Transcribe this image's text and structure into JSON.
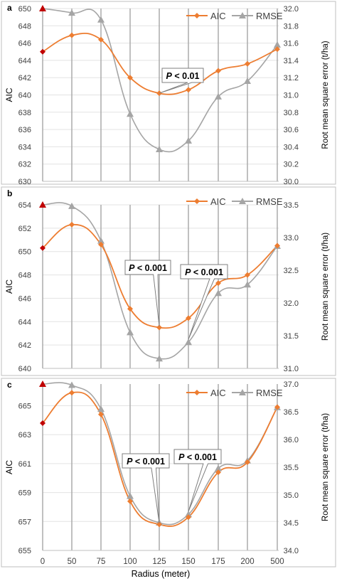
{
  "x_axis_title": "Radius (meter)",
  "chart_data": [
    {
      "type": "line",
      "panel_label": "a",
      "categories": [
        "0",
        "50",
        "75",
        "100",
        "125",
        "150",
        "175",
        "200",
        "500"
      ],
      "y_left": {
        "label": "AIC",
        "ylim": [
          630,
          650
        ],
        "ticks": [
          "630",
          "632",
          "634",
          "636",
          "638",
          "640",
          "642",
          "644",
          "646",
          "648",
          "650"
        ]
      },
      "y_right": {
        "label": "Root mean square error (t/ha)",
        "ylim": [
          30.0,
          32.0
        ],
        "ticks": [
          "30.0",
          "30.2",
          "30.4",
          "30.6",
          "30.8",
          "31.0",
          "31.2",
          "31.4",
          "31.6",
          "31.8",
          "32.0"
        ]
      },
      "series": [
        {
          "name": "AIC",
          "axis": "left",
          "color": "#ed7d31",
          "values": [
            645.0,
            646.9,
            646.4,
            642.0,
            640.2,
            640.6,
            642.8,
            643.6,
            645.3
          ]
        },
        {
          "name": "RMSE",
          "axis": "right",
          "color": "#a5a5a5",
          "values": [
            32.0,
            31.95,
            31.87,
            30.78,
            30.37,
            30.47,
            30.98,
            31.16,
            31.58
          ]
        }
      ],
      "legend": {
        "position": "top-right"
      },
      "annotations": [
        {
          "text": "P < 0.01",
          "at_category": "125"
        }
      ],
      "grid": true
    },
    {
      "type": "line",
      "panel_label": "b",
      "categories": [
        "0",
        "50",
        "75",
        "100",
        "125",
        "150",
        "175",
        "200",
        "500"
      ],
      "y_left": {
        "label": "AIC",
        "ylim": [
          640,
          654
        ],
        "ticks": [
          "640",
          "642",
          "644",
          "646",
          "648",
          "650",
          "652",
          "654"
        ]
      },
      "y_right": {
        "label": "Root mean square error (t/ha)",
        "ylim": [
          31.0,
          33.5
        ],
        "ticks": [
          "31.0",
          "31.5",
          "32.0",
          "32.5",
          "33.0",
          "33.5"
        ]
      },
      "series": [
        {
          "name": "AIC",
          "axis": "left",
          "color": "#ed7d31",
          "values": [
            650.3,
            652.3,
            650.6,
            645.1,
            643.5,
            644.3,
            647.3,
            648.0,
            650.5
          ]
        },
        {
          "name": "RMSE",
          "axis": "right",
          "color": "#a5a5a5",
          "values": [
            33.5,
            33.48,
            32.95,
            31.55,
            31.15,
            31.4,
            32.15,
            32.28,
            32.87
          ]
        }
      ],
      "legend": {
        "position": "top-right"
      },
      "annotations": [
        {
          "text": "P < 0.001",
          "at_category": "125"
        },
        {
          "text": "P < 0.001",
          "at_category": "150"
        }
      ],
      "grid": true
    },
    {
      "type": "line",
      "panel_label": "c",
      "categories": [
        "0",
        "50",
        "75",
        "100",
        "125",
        "150",
        "175",
        "200",
        "500"
      ],
      "y_left": {
        "label": "AIC",
        "ylim": [
          655,
          666.5
        ],
        "ticks": [
          "655",
          "657",
          "659",
          "661",
          "663",
          "665"
        ]
      },
      "y_right": {
        "label": "Root mean square error (t/ha)",
        "ylim": [
          34.0,
          37.0
        ],
        "ticks": [
          "34.0",
          "34.5",
          "35.0",
          "35.5",
          "36.0",
          "36.5",
          "37.0"
        ]
      },
      "series": [
        {
          "name": "AIC",
          "axis": "left",
          "color": "#ed7d31",
          "values": [
            663.8,
            665.9,
            664.4,
            658.4,
            656.8,
            657.3,
            660.4,
            661.1,
            664.9
          ]
        },
        {
          "name": "RMSE",
          "axis": "right",
          "color": "#a5a5a5",
          "values": [
            37.0,
            36.98,
            36.55,
            34.98,
            34.5,
            34.65,
            35.48,
            35.62,
            36.58
          ]
        }
      ],
      "legend": {
        "position": "top-right"
      },
      "annotations": [
        {
          "text": "P < 0.001",
          "at_category": "125"
        },
        {
          "text": "P < 0.001",
          "at_category": "150"
        }
      ],
      "grid": true
    }
  ]
}
